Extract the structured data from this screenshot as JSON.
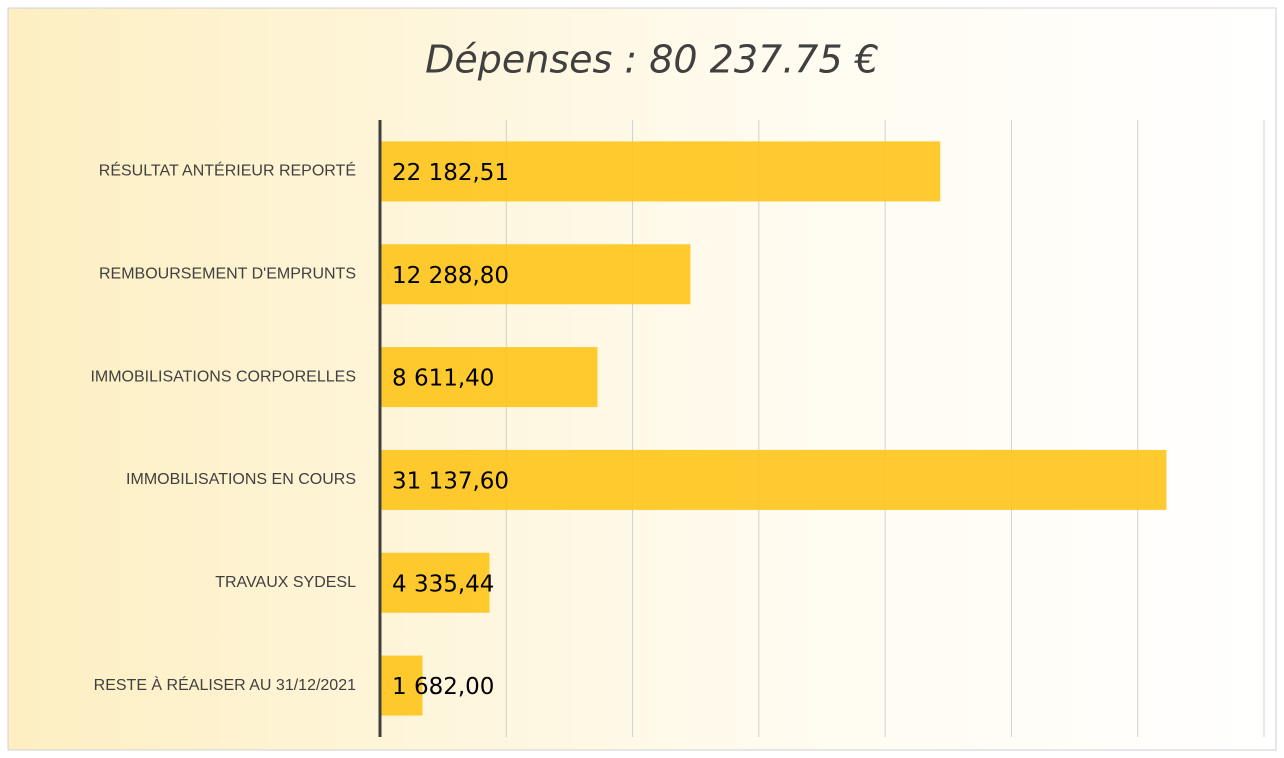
{
  "chart_data": {
    "type": "bar",
    "orientation": "horizontal",
    "title": "Dépenses : 80 237.75 €",
    "categories": [
      "RÉSULTAT ANTÉRIEUR REPORTÉ",
      "REMBOURSEMENT D'EMPRUNTS",
      "IMMOBILISATIONS CORPORELLES",
      "IMMOBILISATIONS EN COURS",
      "TRAVAUX SYDESL",
      "RESTE À RÉALISER AU 31/12/2021"
    ],
    "values": [
      22182.51,
      12288.8,
      8611.4,
      31137.6,
      4335.44,
      1682.0
    ],
    "value_labels": [
      "22 182,51",
      "12 288,80",
      "8 611,40",
      "31 137,60",
      "4 335,44",
      "1 682,00"
    ],
    "color": "#fec41a",
    "xlim": [
      0,
      35000
    ],
    "xticks": [
      0,
      5000,
      10000,
      15000,
      20000,
      25000,
      30000,
      35000
    ],
    "grid": true
  }
}
